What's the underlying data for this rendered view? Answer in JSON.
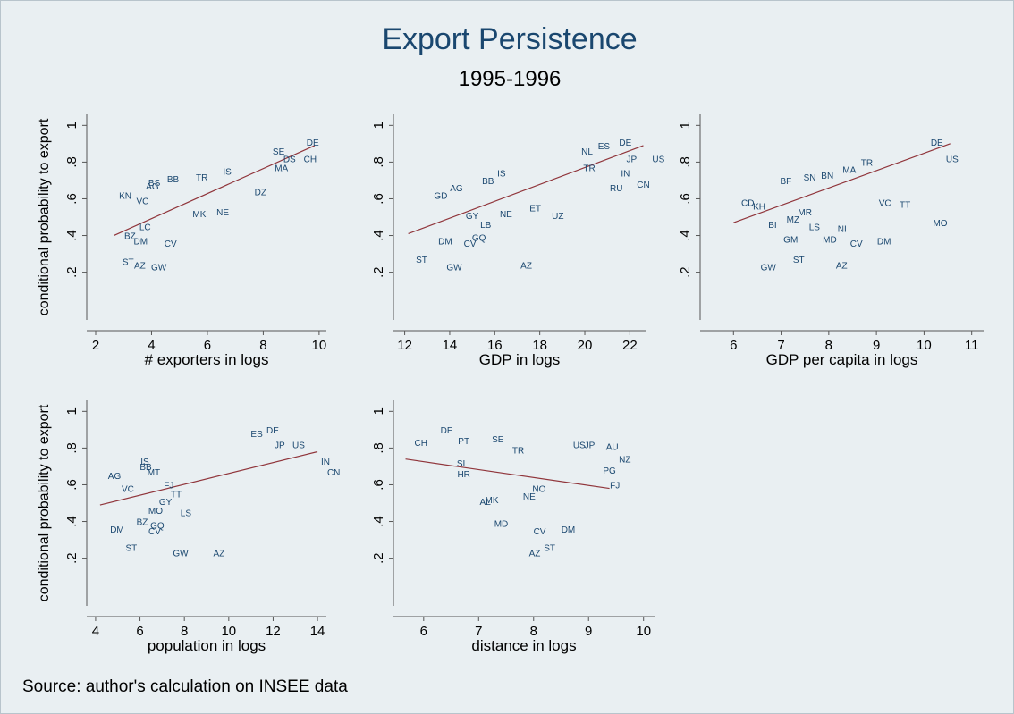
{
  "title": "Export Persistence",
  "subtitle": "1995-1996",
  "note": "Source: author's calculation on INSEE data",
  "chart_data": [
    {
      "type": "scatter",
      "x_label": "# exporters in logs",
      "y_label": "conditional probability to export",
      "xlim": [
        1.68,
        10.26
      ],
      "ylim": [
        -0.06,
        1.06
      ],
      "xticks": [
        2,
        4,
        6,
        8,
        10
      ],
      "yticks": [
        {
          "value": 0.2,
          "label": ".2"
        },
        {
          "value": 0.4,
          "label": ".4"
        },
        {
          "value": 0.6,
          "label": ".6"
        },
        {
          "value": 0.8,
          "label": ".8"
        },
        1
      ],
      "points": {
        "color": "#1a476f",
        "labels": [
          "DE",
          "CH",
          "DS",
          "SE",
          "MA",
          "DZ",
          "ST",
          "AZ",
          "GW",
          "KN",
          "BZ",
          "DM",
          "CV",
          "BB",
          "AG",
          "BS",
          "VC",
          "LC",
          "MK",
          "NE",
          "IS",
          "TR"
        ],
        "x": [
          9.77,
          9.68,
          8.94,
          8.55,
          8.65,
          7.9,
          3.16,
          3.58,
          4.26,
          3.06,
          3.23,
          3.61,
          4.68,
          4.77,
          4.03,
          4.1,
          3.68,
          3.77,
          5.71,
          6.55,
          6.71,
          5.8
        ],
        "y": [
          0.91,
          0.82,
          0.82,
          0.86,
          0.77,
          0.64,
          0.26,
          0.24,
          0.23,
          0.62,
          0.4,
          0.37,
          0.36,
          0.71,
          0.67,
          0.69,
          0.59,
          0.45,
          0.52,
          0.53,
          0.75,
          0.72
        ]
      },
      "fit": {
        "color": "#90353b",
        "x": [
          2.65,
          9.84
        ],
        "y": [
          0.4,
          0.89
        ]
      }
    },
    {
      "type": "scatter",
      "x_label": "GDP in logs",
      "xlim": [
        11.5,
        22.7
      ],
      "ylim": [
        -0.06,
        1.06
      ],
      "xticks": [
        12,
        14,
        16,
        18,
        20,
        22
      ],
      "yticks": [
        {
          "value": 0.2,
          "label": ".2"
        },
        {
          "value": 0.4,
          "label": ".4"
        },
        {
          "value": 0.6,
          "label": ".6"
        },
        {
          "value": 0.8,
          "label": ".8"
        },
        1
      ],
      "points": {
        "color": "#1a476f",
        "labels": [
          "DE",
          "JP",
          "US",
          "IN",
          "RU",
          "CN",
          "ST",
          "GW",
          "AZ",
          "DM",
          "CV",
          "GQ",
          "AG",
          "GD",
          "ES",
          "NL",
          "TR",
          "IS",
          "BB",
          "GY",
          "UZ",
          "NE",
          "ET",
          "LB"
        ],
        "x": [
          21.8,
          22.08,
          23.27,
          21.8,
          21.4,
          22.6,
          12.75,
          14.2,
          17.4,
          13.8,
          14.9,
          15.3,
          14.3,
          13.6,
          20.85,
          20.1,
          20.2,
          16.3,
          15.7,
          15.0,
          18.8,
          16.5,
          17.8,
          15.6
        ],
        "y": [
          0.91,
          0.82,
          0.82,
          0.74,
          0.66,
          0.68,
          0.27,
          0.23,
          0.24,
          0.37,
          0.36,
          0.39,
          0.66,
          0.62,
          0.89,
          0.86,
          0.77,
          0.74,
          0.7,
          0.51,
          0.51,
          0.52,
          0.55,
          0.46
        ]
      },
      "fit": {
        "color": "#90353b",
        "x": [
          12.16,
          22.6
        ],
        "y": [
          0.41,
          0.89
        ]
      }
    },
    {
      "type": "scatter",
      "x_label": "GDP per capita in logs",
      "xlim": [
        5.3,
        11.25
      ],
      "ylim": [
        -0.06,
        1.06
      ],
      "xticks": [
        6,
        7,
        8,
        9,
        10,
        11
      ],
      "yticks": [
        {
          "value": 0.2,
          "label": ".2"
        },
        {
          "value": 0.4,
          "label": ".4"
        },
        {
          "value": 0.6,
          "label": ".6"
        },
        {
          "value": 0.8,
          "label": ".8"
        },
        1
      ],
      "points": {
        "color": "#1a476f",
        "labels": [
          "DE",
          "US",
          "MO",
          "TT",
          "GW",
          "ST",
          "AZ",
          "CD",
          "BI",
          "GM",
          "LS",
          "MD",
          "DM",
          "NI",
          "CV",
          "MR",
          "BF",
          "TR",
          "MA",
          "SN",
          "BN",
          "VC",
          "MZ",
          "KH"
        ],
        "x": [
          10.27,
          10.59,
          10.34,
          9.6,
          6.73,
          7.37,
          8.27,
          6.3,
          6.82,
          7.2,
          7.7,
          8.02,
          9.16,
          8.28,
          8.58,
          7.5,
          7.1,
          8.8,
          8.43,
          7.6,
          7.97,
          9.18,
          7.25,
          6.54
        ],
        "y": [
          0.91,
          0.82,
          0.47,
          0.57,
          0.23,
          0.27,
          0.24,
          0.58,
          0.46,
          0.38,
          0.45,
          0.38,
          0.37,
          0.44,
          0.36,
          0.53,
          0.7,
          0.8,
          0.76,
          0.72,
          0.73,
          0.58,
          0.49,
          0.56
        ]
      },
      "fit": {
        "color": "#90353b",
        "x": [
          6.0,
          10.55
        ],
        "y": [
          0.47,
          0.9
        ]
      }
    },
    {
      "type": "scatter",
      "x_label": "population in logs",
      "y_label": "conditional probability to export",
      "xlim": [
        3.6,
        14.4
      ],
      "ylim": [
        -0.06,
        1.06
      ],
      "xticks": [
        4,
        6,
        8,
        10,
        12,
        14
      ],
      "yticks": [
        {
          "value": 0.2,
          "label": ".2"
        },
        {
          "value": 0.4,
          "label": ".4"
        },
        {
          "value": 0.6,
          "label": ".6"
        },
        {
          "value": 0.8,
          "label": ".8"
        },
        1
      ],
      "points": {
        "color": "#1a476f",
        "labels": [
          "DE",
          "IN",
          "CN",
          "US",
          "JP",
          "ES",
          "IS",
          "AG",
          "VC",
          "DM",
          "ST",
          "BZ",
          "GQ",
          "CV",
          "GW",
          "AZ",
          "MO",
          "FJ",
          "MT",
          "TT",
          "GY",
          "LS",
          "BB"
        ],
        "x": [
          11.98,
          14.36,
          14.73,
          13.15,
          12.3,
          11.26,
          6.22,
          4.85,
          5.45,
          4.97,
          5.61,
          6.1,
          6.78,
          6.66,
          7.83,
          9.56,
          6.7,
          7.3,
          6.62,
          7.63,
          7.15,
          8.07,
          6.26
        ],
        "y": [
          0.9,
          0.73,
          0.67,
          0.82,
          0.82,
          0.88,
          0.73,
          0.65,
          0.58,
          0.36,
          0.26,
          0.4,
          0.38,
          0.35,
          0.23,
          0.23,
          0.46,
          0.6,
          0.67,
          0.55,
          0.51,
          0.45,
          0.7
        ]
      },
      "fit": {
        "color": "#90353b",
        "x": [
          4.2,
          14.0
        ],
        "y": [
          0.49,
          0.78
        ]
      }
    },
    {
      "type": "scatter",
      "x_label": "distance in logs",
      "xlim": [
        5.45,
        10.2
      ],
      "ylim": [
        -0.06,
        1.06
      ],
      "xticks": [
        6,
        7,
        8,
        9,
        10
      ],
      "yticks": [
        {
          "value": 0.2,
          "label": ".2"
        },
        {
          "value": 0.4,
          "label": ".4"
        },
        {
          "value": 0.6,
          "label": ".6"
        },
        {
          "value": 0.8,
          "label": ".8"
        },
        1
      ],
      "points": {
        "color": "#1a476f",
        "labels": [
          "CH",
          "DE",
          "SE",
          "AU",
          "NZ",
          "FJ",
          "US",
          "JP",
          "PG",
          "HR",
          "SI",
          "AL",
          "MK",
          "MD",
          "AZ",
          "ST",
          "CV",
          "DM",
          "NE",
          "TR",
          "PT",
          "NO"
        ],
        "x": [
          5.95,
          6.42,
          7.35,
          9.43,
          9.66,
          9.48,
          8.83,
          9.02,
          9.38,
          6.73,
          6.68,
          7.12,
          7.24,
          7.41,
          8.02,
          8.29,
          8.11,
          8.63,
          7.92,
          7.72,
          6.73,
          8.1
        ],
        "y": [
          0.83,
          0.9,
          0.85,
          0.81,
          0.74,
          0.6,
          0.82,
          0.82,
          0.68,
          0.66,
          0.72,
          0.51,
          0.52,
          0.39,
          0.23,
          0.26,
          0.35,
          0.36,
          0.54,
          0.79,
          0.84,
          0.58
        ]
      },
      "fit": {
        "color": "#90353b",
        "x": [
          5.67,
          9.38
        ],
        "y": [
          0.74,
          0.58
        ]
      }
    }
  ]
}
